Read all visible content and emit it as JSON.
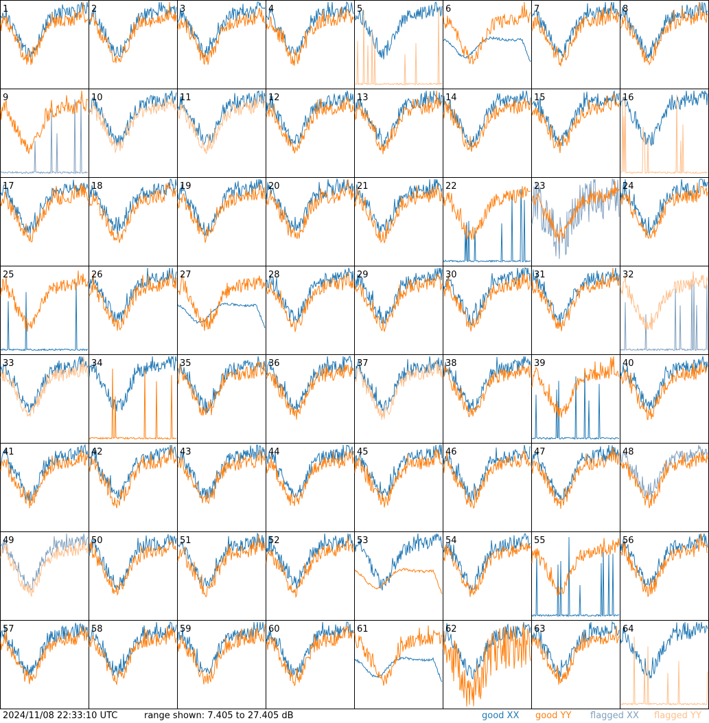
{
  "page": {
    "timestamp": "2024/11/08 22:33:10 UTC",
    "range_label": "range shown: 7.405 to 27.405 dB"
  },
  "legend": [
    {
      "key": "good_xx",
      "label": "good XX",
      "color": "#1f77b4"
    },
    {
      "key": "good_yy",
      "label": "good YY",
      "color": "#ff7f0e"
    },
    {
      "key": "flagged_xx",
      "label": "flagged XX",
      "color": "#7f9fbf"
    },
    {
      "key": "flagged_yy",
      "label": "flagged YY",
      "color": "#ffbf8a"
    }
  ],
  "chart_data": {
    "type": "line",
    "title": "",
    "xlabel": "",
    "ylabel": "",
    "ylim": [
      7.405,
      27.405
    ],
    "grid": false,
    "panels_per_row": 8,
    "series_names": [
      "good XX",
      "good YY",
      "flagged XX",
      "flagged YY"
    ],
    "panels": [
      {
        "label": "1",
        "xx": "good",
        "yy": "good",
        "xx_profile": "normal",
        "yy_profile": "normal"
      },
      {
        "label": "2",
        "xx": "good",
        "yy": "good",
        "xx_profile": "normal",
        "yy_profile": "normal"
      },
      {
        "label": "3",
        "xx": "good",
        "yy": "good",
        "xx_profile": "normal",
        "yy_profile": "normal"
      },
      {
        "label": "4",
        "xx": "good",
        "yy": "good",
        "xx_profile": "normal",
        "yy_profile": "normal"
      },
      {
        "label": "5",
        "xx": "good",
        "yy": "flagged",
        "xx_profile": "normal",
        "yy_profile": "spikes"
      },
      {
        "label": "6",
        "xx": "good",
        "yy": "good",
        "xx_profile": "smooth",
        "yy_profile": "normal"
      },
      {
        "label": "7",
        "xx": "good",
        "yy": "good",
        "xx_profile": "normal",
        "yy_profile": "normal"
      },
      {
        "label": "8",
        "xx": "good",
        "yy": "good",
        "xx_profile": "normal",
        "yy_profile": "normal"
      },
      {
        "label": "9",
        "xx": "flagged",
        "yy": "good",
        "xx_profile": "spikes",
        "yy_profile": "normal"
      },
      {
        "label": "10",
        "xx": "good",
        "yy": "flagged",
        "xx_profile": "normal",
        "yy_profile": "normal"
      },
      {
        "label": "11",
        "xx": "good",
        "yy": "flagged",
        "xx_profile": "normal",
        "yy_profile": "normal"
      },
      {
        "label": "12",
        "xx": "good",
        "yy": "good",
        "xx_profile": "normal",
        "yy_profile": "normal"
      },
      {
        "label": "13",
        "xx": "good",
        "yy": "good",
        "xx_profile": "normal",
        "yy_profile": "normal"
      },
      {
        "label": "14",
        "xx": "good",
        "yy": "good",
        "xx_profile": "normal",
        "yy_profile": "normal"
      },
      {
        "label": "15",
        "xx": "good",
        "yy": "good",
        "xx_profile": "normal",
        "yy_profile": "normal"
      },
      {
        "label": "16",
        "xx": "good",
        "yy": "flagged",
        "xx_profile": "normal",
        "yy_profile": "spikes"
      },
      {
        "label": "17",
        "xx": "good",
        "yy": "good",
        "xx_profile": "normal",
        "yy_profile": "normal"
      },
      {
        "label": "18",
        "xx": "good",
        "yy": "good",
        "xx_profile": "normal",
        "yy_profile": "normal"
      },
      {
        "label": "19",
        "xx": "good",
        "yy": "good",
        "xx_profile": "normal",
        "yy_profile": "normal"
      },
      {
        "label": "20",
        "xx": "good",
        "yy": "good",
        "xx_profile": "normal",
        "yy_profile": "normal"
      },
      {
        "label": "21",
        "xx": "good",
        "yy": "good",
        "xx_profile": "normal",
        "yy_profile": "normal"
      },
      {
        "label": "22",
        "xx": "good",
        "yy": "good",
        "xx_profile": "spikes",
        "yy_profile": "normal"
      },
      {
        "label": "23",
        "xx": "flagged",
        "yy": "good",
        "xx_profile": "noisy",
        "yy_profile": "normal"
      },
      {
        "label": "24",
        "xx": "good",
        "yy": "good",
        "xx_profile": "normal",
        "yy_profile": "normal"
      },
      {
        "label": "25",
        "xx": "good",
        "yy": "good",
        "xx_profile": "spikes",
        "yy_profile": "normal"
      },
      {
        "label": "26",
        "xx": "good",
        "yy": "good",
        "xx_profile": "normal",
        "yy_profile": "normal"
      },
      {
        "label": "27",
        "xx": "good",
        "yy": "good",
        "xx_profile": "smooth",
        "yy_profile": "normal"
      },
      {
        "label": "28",
        "xx": "good",
        "yy": "good",
        "xx_profile": "normal",
        "yy_profile": "normal"
      },
      {
        "label": "29",
        "xx": "good",
        "yy": "good",
        "xx_profile": "normal",
        "yy_profile": "normal"
      },
      {
        "label": "30",
        "xx": "good",
        "yy": "good",
        "xx_profile": "normal",
        "yy_profile": "normal"
      },
      {
        "label": "31",
        "xx": "good",
        "yy": "good",
        "xx_profile": "normal",
        "yy_profile": "normal"
      },
      {
        "label": "32",
        "xx": "flagged",
        "yy": "flagged",
        "xx_profile": "spikes",
        "yy_profile": "normal"
      },
      {
        "label": "33",
        "xx": "good",
        "yy": "flagged",
        "xx_profile": "normal",
        "yy_profile": "normal"
      },
      {
        "label": "34",
        "xx": "good",
        "yy": "good",
        "xx_profile": "normal",
        "yy_profile": "spikes"
      },
      {
        "label": "35",
        "xx": "good",
        "yy": "good",
        "xx_profile": "normal",
        "yy_profile": "normal"
      },
      {
        "label": "36",
        "xx": "good",
        "yy": "good",
        "xx_profile": "normal",
        "yy_profile": "normal"
      },
      {
        "label": "37",
        "xx": "good",
        "yy": "flagged",
        "xx_profile": "normal",
        "yy_profile": "normal"
      },
      {
        "label": "38",
        "xx": "good",
        "yy": "good",
        "xx_profile": "normal",
        "yy_profile": "normal"
      },
      {
        "label": "39",
        "xx": "good",
        "yy": "good",
        "xx_profile": "spikes",
        "yy_profile": "normal"
      },
      {
        "label": "40",
        "xx": "good",
        "yy": "good",
        "xx_profile": "normal",
        "yy_profile": "normal"
      },
      {
        "label": "41",
        "xx": "good",
        "yy": "good",
        "xx_profile": "normal",
        "yy_profile": "normal"
      },
      {
        "label": "42",
        "xx": "good",
        "yy": "good",
        "xx_profile": "normal",
        "yy_profile": "normal"
      },
      {
        "label": "43",
        "xx": "good",
        "yy": "good",
        "xx_profile": "normal",
        "yy_profile": "normal"
      },
      {
        "label": "44",
        "xx": "good",
        "yy": "good",
        "xx_profile": "normal",
        "yy_profile": "normal"
      },
      {
        "label": "45",
        "xx": "good",
        "yy": "good",
        "xx_profile": "normal",
        "yy_profile": "normal"
      },
      {
        "label": "46",
        "xx": "good",
        "yy": "good",
        "xx_profile": "normal",
        "yy_profile": "normal"
      },
      {
        "label": "47",
        "xx": "good",
        "yy": "good",
        "xx_profile": "normal",
        "yy_profile": "normal"
      },
      {
        "label": "48",
        "xx": "flagged",
        "yy": "good",
        "xx_profile": "normal",
        "yy_profile": "normal"
      },
      {
        "label": "49",
        "xx": "flagged",
        "yy": "flagged",
        "xx_profile": "normal",
        "yy_profile": "normal"
      },
      {
        "label": "50",
        "xx": "good",
        "yy": "good",
        "xx_profile": "normal",
        "yy_profile": "normal"
      },
      {
        "label": "51",
        "xx": "good",
        "yy": "good",
        "xx_profile": "normal",
        "yy_profile": "normal"
      },
      {
        "label": "52",
        "xx": "good",
        "yy": "good",
        "xx_profile": "normal",
        "yy_profile": "normal"
      },
      {
        "label": "53",
        "xx": "good",
        "yy": "good",
        "xx_profile": "normal",
        "yy_profile": "smooth"
      },
      {
        "label": "54",
        "xx": "good",
        "yy": "good",
        "xx_profile": "normal",
        "yy_profile": "normal"
      },
      {
        "label": "55",
        "xx": "good",
        "yy": "good",
        "xx_profile": "spikes",
        "yy_profile": "normal"
      },
      {
        "label": "56",
        "xx": "good",
        "yy": "good",
        "xx_profile": "normal",
        "yy_profile": "normal"
      },
      {
        "label": "57",
        "xx": "good",
        "yy": "good",
        "xx_profile": "normal",
        "yy_profile": "normal"
      },
      {
        "label": "58",
        "xx": "good",
        "yy": "good",
        "xx_profile": "normal",
        "yy_profile": "normal"
      },
      {
        "label": "59",
        "xx": "good",
        "yy": "good",
        "xx_profile": "normal",
        "yy_profile": "normal"
      },
      {
        "label": "60",
        "xx": "good",
        "yy": "good",
        "xx_profile": "normal",
        "yy_profile": "normal"
      },
      {
        "label": "61",
        "xx": "good",
        "yy": "good",
        "xx_profile": "smooth",
        "yy_profile": "normal"
      },
      {
        "label": "62",
        "xx": "good",
        "yy": "good",
        "xx_profile": "normal",
        "yy_profile": "noisy"
      },
      {
        "label": "63",
        "xx": "good",
        "yy": "good",
        "xx_profile": "normal",
        "yy_profile": "normal"
      },
      {
        "label": "64",
        "xx": "good",
        "yy": "flagged",
        "xx_profile": "normal",
        "yy_profile": "spikes"
      }
    ]
  }
}
